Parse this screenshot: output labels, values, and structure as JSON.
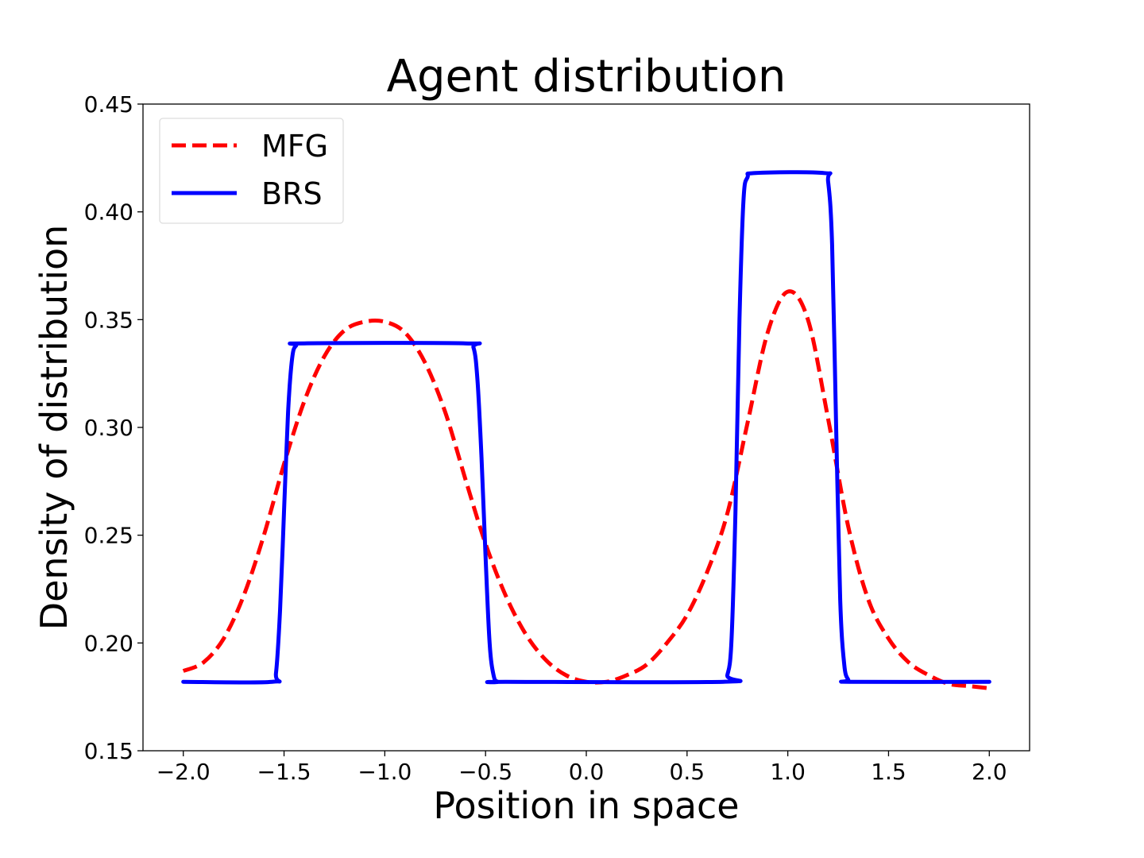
{
  "chart_data": {
    "type": "line",
    "title": "Agent distribution",
    "xlabel": "Position in space",
    "ylabel": "Density of distribution",
    "xlim": [
      -2.2,
      2.2
    ],
    "ylim": [
      0.15,
      0.45
    ],
    "xticks": [
      -2.0,
      -1.5,
      -1.0,
      -0.5,
      0.0,
      0.5,
      1.0,
      1.5,
      2.0
    ],
    "xtick_labels": [
      "−2.0",
      "−1.5",
      "−1.0",
      "−0.5",
      "0.0",
      "0.5",
      "1.0",
      "1.5",
      "2.0"
    ],
    "yticks": [
      0.15,
      0.2,
      0.25,
      0.3,
      0.35,
      0.4,
      0.45
    ],
    "ytick_labels": [
      "0.15",
      "0.20",
      "0.25",
      "0.30",
      "0.35",
      "0.40",
      "0.45"
    ],
    "grid": false,
    "legend_position": "top-left",
    "series": [
      {
        "name": "MFG",
        "color": "#ff0000",
        "style": "dashed",
        "x": [
          -2.0,
          -1.9,
          -1.8,
          -1.7,
          -1.6,
          -1.5,
          -1.4,
          -1.3,
          -1.2,
          -1.1,
          -1.0,
          -0.9,
          -0.8,
          -0.7,
          -0.6,
          -0.5,
          -0.4,
          -0.3,
          -0.2,
          -0.1,
          0.0,
          0.1,
          0.2,
          0.3,
          0.4,
          0.5,
          0.6,
          0.7,
          0.8,
          0.9,
          1.0,
          1.1,
          1.2,
          1.3,
          1.4,
          1.5,
          1.6,
          1.7,
          1.8,
          1.9,
          2.0
        ],
        "y": [
          0.187,
          0.191,
          0.202,
          0.222,
          0.25,
          0.283,
          0.312,
          0.333,
          0.345,
          0.349,
          0.349,
          0.344,
          0.33,
          0.307,
          0.276,
          0.246,
          0.222,
          0.204,
          0.192,
          0.185,
          0.182,
          0.182,
          0.185,
          0.19,
          0.2,
          0.213,
          0.233,
          0.26,
          0.302,
          0.344,
          0.363,
          0.35,
          0.304,
          0.254,
          0.22,
          0.202,
          0.191,
          0.185,
          0.181,
          0.18,
          0.179
        ]
      },
      {
        "name": "BRS",
        "color": "#0000ff",
        "style": "solid",
        "x": [
          -2.0,
          -1.56,
          -1.54,
          -1.52,
          -1.5,
          -1.48,
          -1.46,
          -1.44,
          -1.4,
          -0.6,
          -0.56,
          -0.54,
          -0.52,
          -0.5,
          -0.48,
          -0.46,
          -0.44,
          -0.4,
          0.68,
          0.7,
          0.72,
          0.74,
          0.76,
          0.78,
          0.8,
          0.84,
          1.18,
          1.2,
          1.22,
          1.24,
          1.26,
          1.28,
          1.3,
          1.32,
          2.0
        ],
        "y": [
          0.182,
          0.182,
          0.186,
          0.215,
          0.261,
          0.307,
          0.332,
          0.338,
          0.339,
          0.339,
          0.337,
          0.322,
          0.286,
          0.24,
          0.2,
          0.185,
          0.182,
          0.182,
          0.182,
          0.185,
          0.2,
          0.26,
          0.35,
          0.405,
          0.416,
          0.418,
          0.418,
          0.414,
          0.385,
          0.3,
          0.22,
          0.19,
          0.183,
          0.182,
          0.182
        ]
      }
    ]
  }
}
